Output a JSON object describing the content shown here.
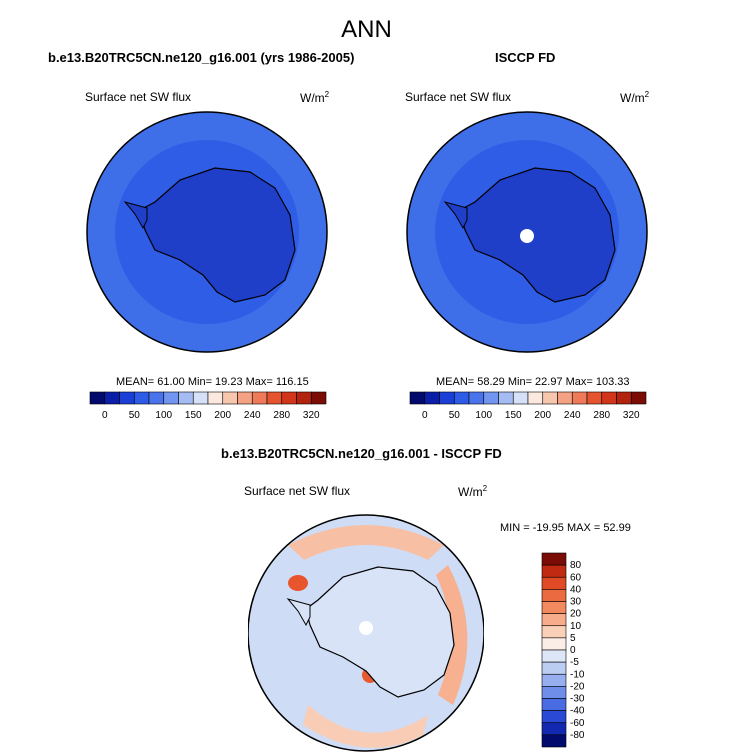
{
  "title": "ANN",
  "panels": [
    {
      "title": "b.e13.B20TRC5CN.ne120_g16.001 (yrs 1986-2005)",
      "left_label": "Surface net SW flux",
      "units": "W/m",
      "units_sup": "2",
      "stats": "MEAN= 61.00  Min= 19.23  Max= 116.15"
    },
    {
      "title": "ISCCP FD",
      "left_label": "Surface net SW flux",
      "units": "W/m",
      "units_sup": "2",
      "stats": "MEAN= 58.29  Min= 22.97  Max= 103.33"
    }
  ],
  "colorbar_top": {
    "labels": [
      "0",
      "50",
      "100",
      "150",
      "200",
      "240",
      "280",
      "320"
    ],
    "colors": [
      "#020a6c",
      "#0a1fa8",
      "#1a3fd6",
      "#2e5ae8",
      "#4a74ec",
      "#7295ef",
      "#a5bbf3",
      "#d6e0f8",
      "#fbe9df",
      "#f8c6ad",
      "#f4a283",
      "#ef7a5a",
      "#e5532f",
      "#d1351a",
      "#b2220e",
      "#7a0b05"
    ]
  },
  "diff_panel": {
    "title": "b.e13.B20TRC5CN.ne120_g16.001 - ISCCP FD",
    "left_label": "Surface net SW flux",
    "units": "W/m",
    "units_sup": "2",
    "stats": "MIN = -19.95 MAX =  52.99"
  },
  "colorbar_diff": {
    "labels": [
      "80",
      "60",
      "40",
      "30",
      "20",
      "10",
      "5",
      "0",
      "-5",
      "-10",
      "-20",
      "-30",
      "-40",
      "-60",
      "-80"
    ],
    "colors": [
      "#7a0b05",
      "#c02a12",
      "#e04a25",
      "#ec6a40",
      "#f3895f",
      "#f7ad8c",
      "#fad0b9",
      "#fbeee6",
      "#dde6f6",
      "#bccdf2",
      "#97afee",
      "#6f8ee9",
      "#4a6ce3",
      "#2a4ad6",
      "#1228b0",
      "#030a6e"
    ]
  },
  "colors": {
    "land_blue": "#1f3fc9",
    "ocean_blue": "#2f5de6",
    "outer_blue": "#3e6fe8",
    "diff_bg": "#cfdcf6"
  }
}
